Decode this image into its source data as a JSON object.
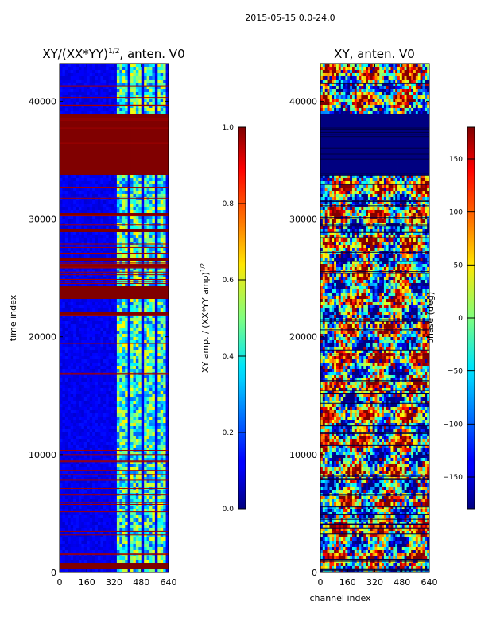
{
  "figure_title": "2015-05-15 0.0-24.0",
  "colors": {
    "jet_low": "#00007f",
    "jet_high": "#7f0000",
    "row_red": "#a00000"
  },
  "chart_data": [
    {
      "type": "heatmap",
      "id": "amp",
      "title_main": "XY/(XX*YY)",
      "title_sup": "1/2",
      "title_tail": ", anten. V0",
      "xlabel": "",
      "ylabel": "time index",
      "xlim": [
        0,
        640
      ],
      "ylim": [
        0,
        43200
      ],
      "xticks": [
        0,
        160,
        320,
        480,
        640
      ],
      "yticks": [
        0,
        10000,
        20000,
        30000,
        40000
      ],
      "colorbar": {
        "label_main": "XY amp. / (XX*YY amp)",
        "label_sup": "1/2",
        "range": [
          0.0,
          1.0
        ],
        "ticks": [
          "0.0",
          "0.2",
          "0.4",
          "0.6",
          "0.8",
          "1.0"
        ],
        "tick_values": [
          0.0,
          0.2,
          0.4,
          0.6,
          0.8,
          1.0
        ]
      },
      "saturated_rows": [
        {
          "from": 33700,
          "to": 38800,
          "value": 1.0
        },
        {
          "from": 30200,
          "to": 30500,
          "value": 1.0
        },
        {
          "from": 28800,
          "to": 29100,
          "value": 1.0
        },
        {
          "from": 26500,
          "to": 26800,
          "value": 1.0
        },
        {
          "from": 25800,
          "to": 26100,
          "value": 1.0
        },
        {
          "from": 23200,
          "to": 24300,
          "value": 1.0
        },
        {
          "from": 21800,
          "to": 22200,
          "value": 1.0
        },
        {
          "from": 400,
          "to": 900,
          "value": 1.0
        }
      ],
      "active_channels": [
        [
          330,
          400
        ],
        [
          420,
          480
        ],
        [
          500,
          560
        ],
        [
          580,
          620
        ]
      ],
      "background_value": 0.08
    },
    {
      "type": "heatmap",
      "id": "phase",
      "title_main": "XY, anten. V0",
      "xlabel": "channel index",
      "ylabel": "",
      "xlim": [
        0,
        640
      ],
      "ylim": [
        0,
        43200
      ],
      "xticks": [
        0,
        160,
        320,
        480,
        640
      ],
      "yticks": [
        0,
        10000,
        20000,
        30000,
        40000
      ],
      "colorbar": {
        "label_main": "phase (deg)",
        "range": [
          -180,
          180
        ],
        "ticks": [
          "150",
          "100",
          "50",
          "0",
          "−50",
          "−100",
          "−150"
        ],
        "tick_values": [
          150,
          100,
          50,
          0,
          -50,
          -100,
          -150
        ]
      },
      "saturated_rows": [
        {
          "from": 33700,
          "to": 38800,
          "value": -180
        }
      ]
    }
  ]
}
